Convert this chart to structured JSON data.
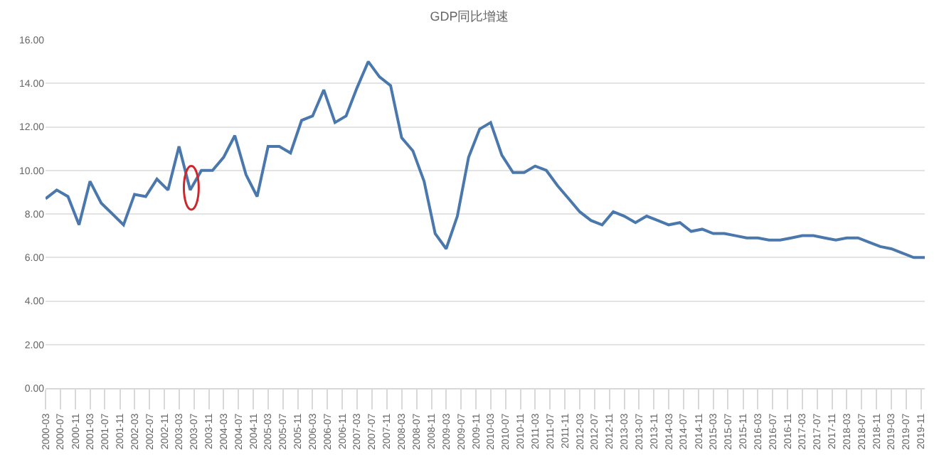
{
  "chart_data": {
    "type": "line",
    "title": "GDP同比增速",
    "x": [
      "2000-03",
      "2000-06",
      "2000-09",
      "2000-12",
      "2001-03",
      "2001-06",
      "2001-09",
      "2001-12",
      "2002-03",
      "2002-06",
      "2002-09",
      "2002-12",
      "2003-03",
      "2003-06",
      "2003-09",
      "2003-12",
      "2004-03",
      "2004-06",
      "2004-09",
      "2004-12",
      "2005-03",
      "2005-06",
      "2005-09",
      "2005-12",
      "2006-03",
      "2006-06",
      "2006-09",
      "2006-12",
      "2007-03",
      "2007-06",
      "2007-09",
      "2007-12",
      "2008-03",
      "2008-06",
      "2008-09",
      "2008-12",
      "2009-03",
      "2009-06",
      "2009-09",
      "2009-12",
      "2010-03",
      "2010-06",
      "2010-09",
      "2010-12",
      "2011-03",
      "2011-06",
      "2011-09",
      "2011-12",
      "2012-03",
      "2012-06",
      "2012-09",
      "2012-12",
      "2013-03",
      "2013-06",
      "2013-09",
      "2013-12",
      "2014-03",
      "2014-06",
      "2014-09",
      "2014-12",
      "2015-03",
      "2015-06",
      "2015-09",
      "2015-12",
      "2016-03",
      "2016-06",
      "2016-09",
      "2016-12",
      "2017-03",
      "2017-06",
      "2017-09",
      "2017-12",
      "2018-03",
      "2018-06",
      "2018-09",
      "2018-12",
      "2019-03",
      "2019-06",
      "2019-09",
      "2019-12"
    ],
    "series": [
      {
        "color": "#4a78ad",
        "values": [
          8.7,
          9.1,
          8.8,
          7.5,
          9.5,
          8.5,
          8.0,
          7.5,
          8.9,
          8.8,
          9.6,
          9.1,
          11.1,
          9.1,
          10.0,
          10.0,
          10.6,
          11.6,
          9.8,
          8.8,
          11.1,
          11.1,
          10.8,
          12.3,
          12.5,
          13.7,
          12.2,
          12.5,
          13.8,
          15.0,
          14.3,
          13.9,
          11.5,
          10.9,
          9.5,
          7.1,
          6.4,
          7.9,
          10.6,
          11.9,
          12.2,
          10.7,
          9.9,
          9.9,
          10.2,
          10.0,
          9.3,
          8.7,
          8.1,
          7.7,
          7.5,
          8.1,
          7.9,
          7.6,
          7.9,
          7.7,
          7.5,
          7.6,
          7.2,
          7.3,
          7.1,
          7.1,
          7.0,
          6.9,
          6.9,
          6.8,
          6.8,
          6.9,
          7.0,
          7.0,
          6.9,
          6.8,
          6.9,
          6.9,
          6.7,
          6.5,
          6.4,
          6.2,
          6.0,
          6.0
        ]
      }
    ],
    "xlim": [
      "2000-03",
      "2019-12"
    ],
    "xticks": [
      "2000-03",
      "2000-07",
      "2000-11",
      "2001-03",
      "2001-07",
      "2001-11",
      "2002-03",
      "2002-07",
      "2002-11",
      "2003-03",
      "2003-07",
      "2003-11",
      "2004-03",
      "2004-07",
      "2004-11",
      "2005-03",
      "2005-07",
      "2005-11",
      "2006-03",
      "2006-07",
      "2006-11",
      "2007-03",
      "2007-07",
      "2007-11",
      "2008-03",
      "2008-07",
      "2008-11",
      "2009-03",
      "2009-07",
      "2009-11",
      "2010-03",
      "2010-07",
      "2010-11",
      "2011-03",
      "2011-07",
      "2011-11",
      "2012-03",
      "2012-07",
      "2012-11",
      "2013-03",
      "2013-07",
      "2013-11",
      "2014-03",
      "2014-07",
      "2014-11",
      "2015-03",
      "2015-07",
      "2015-11",
      "2016-03",
      "2016-07",
      "2016-11",
      "2017-03",
      "2017-07",
      "2017-11",
      "2018-03",
      "2018-07",
      "2018-11",
      "2019-03",
      "2019-07",
      "2019-11"
    ],
    "ylim": [
      0,
      16
    ],
    "yticks": [
      {
        "value": 0,
        "label": "0.00"
      },
      {
        "value": 2,
        "label": "2.00"
      },
      {
        "value": 4,
        "label": "4.00"
      },
      {
        "value": 6,
        "label": "6.00"
      },
      {
        "value": 8,
        "label": "8.00"
      },
      {
        "value": 10,
        "label": "10.00"
      },
      {
        "value": 12,
        "label": "12.00"
      },
      {
        "value": 14,
        "label": "14.00"
      },
      {
        "value": 16,
        "label": "16.00"
      }
    ],
    "grid": "y",
    "legend": false,
    "marker": "none",
    "line_style": "solid"
  }
}
